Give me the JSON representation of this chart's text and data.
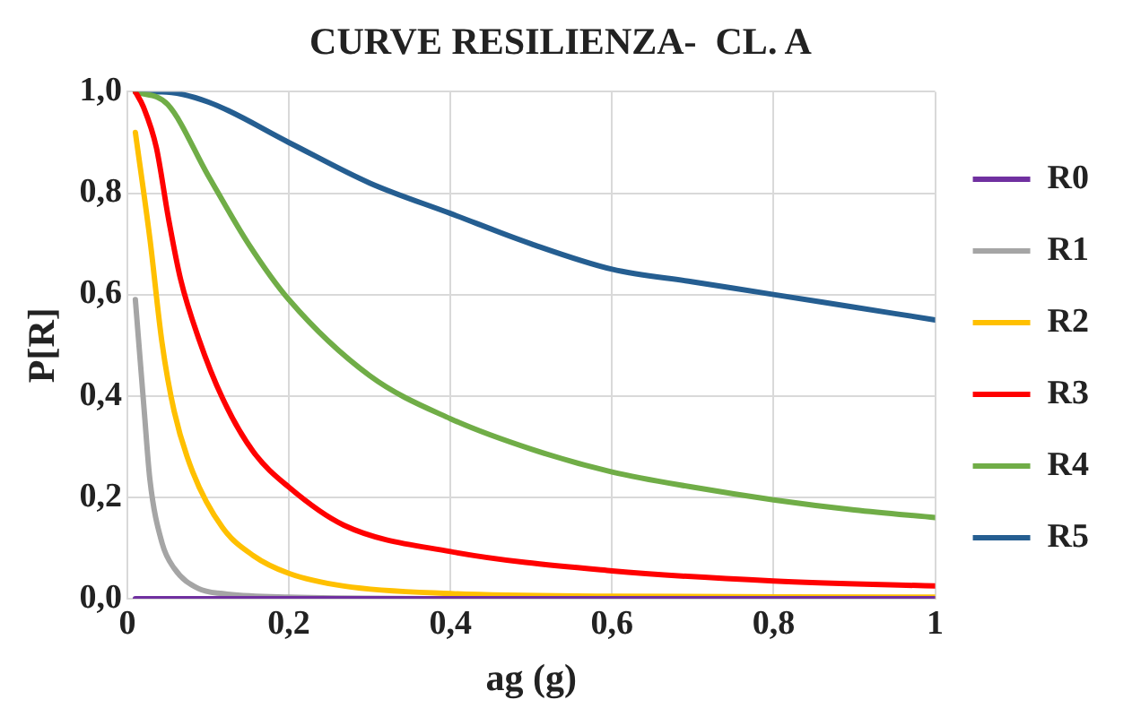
{
  "chart_data": {
    "type": "line",
    "title": "CURVE RESILIENZA-  CL. A",
    "xlabel": "ag (g)",
    "ylabel": "P[R]",
    "xlim": [
      0,
      1
    ],
    "ylim": [
      0,
      1
    ],
    "xticks": [
      0,
      {
        "value": 0.2,
        "label": "0,2"
      },
      {
        "value": 0.4,
        "label": "0,4"
      },
      {
        "value": 0.6,
        "label": "0,6"
      },
      {
        "value": 0.8,
        "label": "0,8"
      },
      1
    ],
    "yticks": [
      {
        "value": 0,
        "label": "0,0"
      },
      {
        "value": 0.2,
        "label": "0,2"
      },
      {
        "value": 0.4,
        "label": "0,4"
      },
      {
        "value": 0.6,
        "label": "0,6"
      },
      {
        "value": 0.8,
        "label": "0,8"
      },
      {
        "value": 1,
        "label": "1,0"
      }
    ],
    "grid": true,
    "legend": "right",
    "marker": "none",
    "line_style": "solid",
    "series": [
      {
        "name": "R0",
        "color": "#7030a0",
        "x": [
          0.01,
          1
        ],
        "values": [
          0,
          0
        ]
      },
      {
        "name": "R1",
        "color": "#a5a5a5",
        "x": [
          0.01,
          0.021,
          0.028,
          0.043,
          0.058,
          0.088,
          0.118,
          0.2,
          0.4
        ],
        "values": [
          0.59,
          0.37,
          0.235,
          0.11,
          0.06,
          0.02,
          0.01,
          0.003,
          0
        ]
      },
      {
        "name": "R2",
        "color": "#ffc000",
        "x": [
          0.01,
          0.028,
          0.043,
          0.058,
          0.081,
          0.118,
          0.156,
          0.2,
          0.268,
          0.4,
          0.6,
          1
        ],
        "values": [
          0.92,
          0.71,
          0.505,
          0.37,
          0.25,
          0.14,
          0.085,
          0.05,
          0.025,
          0.01,
          0.005,
          0.003
        ]
      },
      {
        "name": "R3",
        "color": "#ff0000",
        "x": [
          0.01,
          0.02,
          0.036,
          0.051,
          0.066,
          0.088,
          0.118,
          0.156,
          0.2,
          0.268,
          0.4,
          0.6,
          0.8,
          1
        ],
        "values": [
          1,
          0.97,
          0.89,
          0.75,
          0.63,
          0.515,
          0.395,
          0.29,
          0.22,
          0.145,
          0.093,
          0.055,
          0.035,
          0.025
        ]
      },
      {
        "name": "R4",
        "color": "#70ad47",
        "x": [
          0.01,
          0.05,
          0.1,
          0.15,
          0.2,
          0.3,
          0.4,
          0.5,
          0.6,
          0.7,
          0.8,
          0.9,
          1
        ],
        "values": [
          1,
          0.975,
          0.835,
          0.7,
          0.59,
          0.44,
          0.355,
          0.295,
          0.25,
          0.22,
          0.195,
          0.175,
          0.16
        ]
      },
      {
        "name": "R5",
        "color": "#255e91",
        "x": [
          0.01,
          0.043,
          0.1,
          0.2,
          0.3,
          0.4,
          0.5,
          0.6,
          0.7,
          0.8,
          0.9,
          1
        ],
        "values": [
          1,
          1,
          0.98,
          0.9,
          0.82,
          0.76,
          0.7,
          0.65,
          0.625,
          0.6,
          0.575,
          0.55
        ]
      }
    ]
  }
}
